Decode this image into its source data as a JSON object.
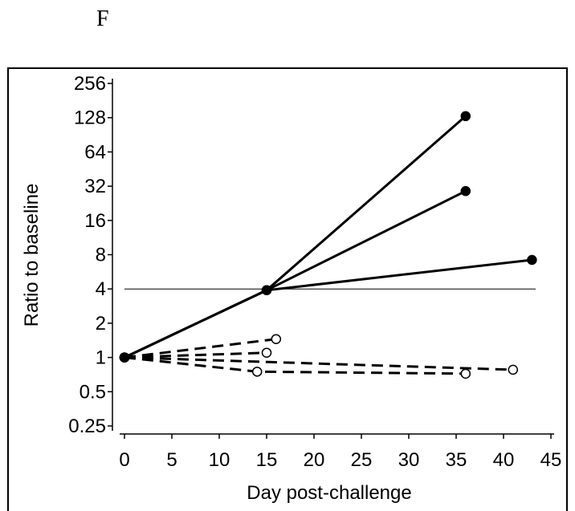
{
  "panel_label": "F",
  "chart_data": {
    "type": "line",
    "title": "",
    "xlabel": "Day post-challenge",
    "ylabel": "Ratio to baseline",
    "xlim": [
      0,
      45
    ],
    "ylim": [
      0.25,
      256
    ],
    "yscale": "log2",
    "xticks": [
      "0",
      "5",
      "10",
      "15",
      "20",
      "25",
      "30",
      "35",
      "40",
      "45"
    ],
    "yticks": [
      "0.25",
      "0.5",
      "1",
      "2",
      "4",
      "8",
      "16",
      "32",
      "64",
      "128",
      "256"
    ],
    "reference_line": {
      "y": 4
    },
    "grid": false,
    "legend": "none",
    "series": [
      {
        "style": "solid",
        "marker": "filled",
        "x": [
          0,
          15,
          36
        ],
        "y": [
          1,
          3.9,
          132
        ]
      },
      {
        "style": "solid",
        "marker": "filled",
        "x": [
          0,
          15,
          36
        ],
        "y": [
          1,
          3.9,
          29
        ]
      },
      {
        "style": "solid",
        "marker": "filled",
        "x": [
          0,
          15,
          43
        ],
        "y": [
          1,
          3.9,
          7.2
        ]
      },
      {
        "style": "dashed",
        "marker": "open",
        "x": [
          0,
          16
        ],
        "y": [
          1,
          1.45
        ]
      },
      {
        "style": "dashed",
        "marker": "open",
        "x": [
          0,
          15
        ],
        "y": [
          1,
          1.1
        ]
      },
      {
        "style": "dashed",
        "marker": "open",
        "x": [
          0,
          14,
          36
        ],
        "y": [
          1,
          0.75,
          0.72
        ]
      },
      {
        "style": "dashed",
        "marker": "open",
        "x": [
          0,
          41
        ],
        "y": [
          1,
          0.78
        ]
      }
    ]
  }
}
